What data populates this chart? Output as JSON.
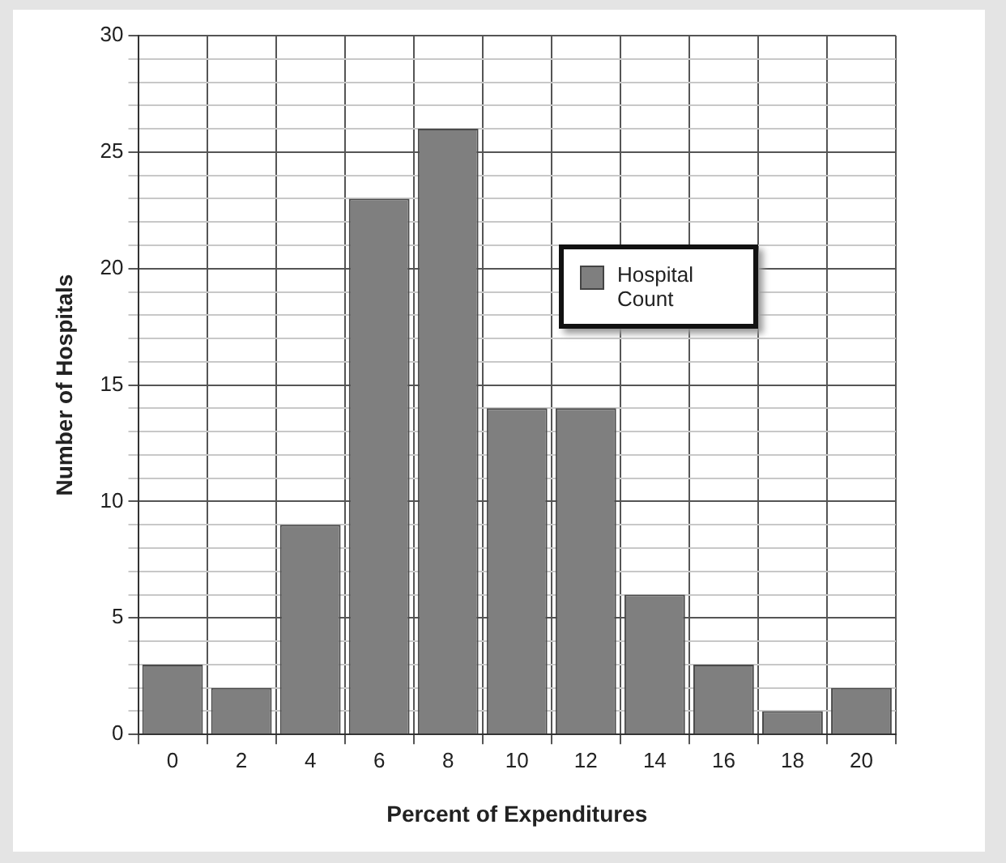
{
  "chart_data": {
    "type": "bar",
    "xlabel": "Percent of Expenditures",
    "ylabel": "Number of Hospitals",
    "categories": [
      "0",
      "2",
      "4",
      "6",
      "8",
      "10",
      "12",
      "14",
      "16",
      "18",
      "20"
    ],
    "series": [
      {
        "name": "Hospital Count",
        "color": "#7f7f7f",
        "values": [
          3,
          2,
          9,
          23,
          26,
          14,
          14,
          6,
          3,
          1,
          2
        ]
      }
    ],
    "ylim": [
      0,
      30
    ],
    "yticks": [
      0,
      {
        "value": 1,
        "label": null
      },
      {
        "value": 2,
        "label": null
      },
      {
        "value": 3,
        "label": null
      },
      {
        "value": 4,
        "label": null
      },
      5,
      {
        "value": 6,
        "label": null
      },
      {
        "value": 7,
        "label": null
      },
      {
        "value": 8,
        "label": null
      },
      {
        "value": 9,
        "label": null
      },
      10,
      {
        "value": 11,
        "label": null
      },
      {
        "value": 12,
        "label": null
      },
      {
        "value": 13,
        "label": null
      },
      {
        "value": 14,
        "label": null
      },
      15,
      {
        "value": 16,
        "label": null
      },
      {
        "value": 17,
        "label": null
      },
      {
        "value": 18,
        "label": null
      },
      {
        "value": 19,
        "label": null
      },
      20,
      {
        "value": 21,
        "label": null
      },
      {
        "value": 22,
        "label": null
      },
      {
        "value": 23,
        "label": null
      },
      {
        "value": 24,
        "label": null
      },
      25,
      {
        "value": 26,
        "label": null
      },
      {
        "value": 27,
        "label": null
      },
      {
        "value": 28,
        "label": null
      },
      {
        "value": 29,
        "label": null
      },
      30
    ],
    "grid": true,
    "legend": "top right"
  }
}
